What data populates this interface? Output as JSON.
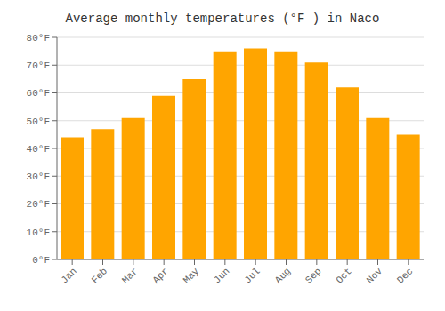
{
  "chart_data": {
    "type": "bar",
    "title": "Average monthly temperatures (°F ) in Naco",
    "categories": [
      "Jan",
      "Feb",
      "Mar",
      "Apr",
      "May",
      "Jun",
      "Jul",
      "Aug",
      "Sep",
      "Oct",
      "Nov",
      "Dec"
    ],
    "values": [
      44,
      47,
      51,
      59,
      65,
      75,
      76,
      75,
      71,
      62,
      51,
      45
    ],
    "color": "#FFA500",
    "ylim": [
      0,
      80
    ],
    "yticks": [
      {
        "value": 0,
        "label": "0°F"
      },
      {
        "value": 10,
        "label": "10°F"
      },
      {
        "value": 20,
        "label": "20°F"
      },
      {
        "value": 30,
        "label": "30°F"
      },
      {
        "value": 40,
        "label": "40°F"
      },
      {
        "value": 50,
        "label": "50°F"
      },
      {
        "value": 60,
        "label": "60°F"
      },
      {
        "value": 70,
        "label": "70°F"
      },
      {
        "value": 80,
        "label": "80°F"
      }
    ],
    "grid": true
  }
}
